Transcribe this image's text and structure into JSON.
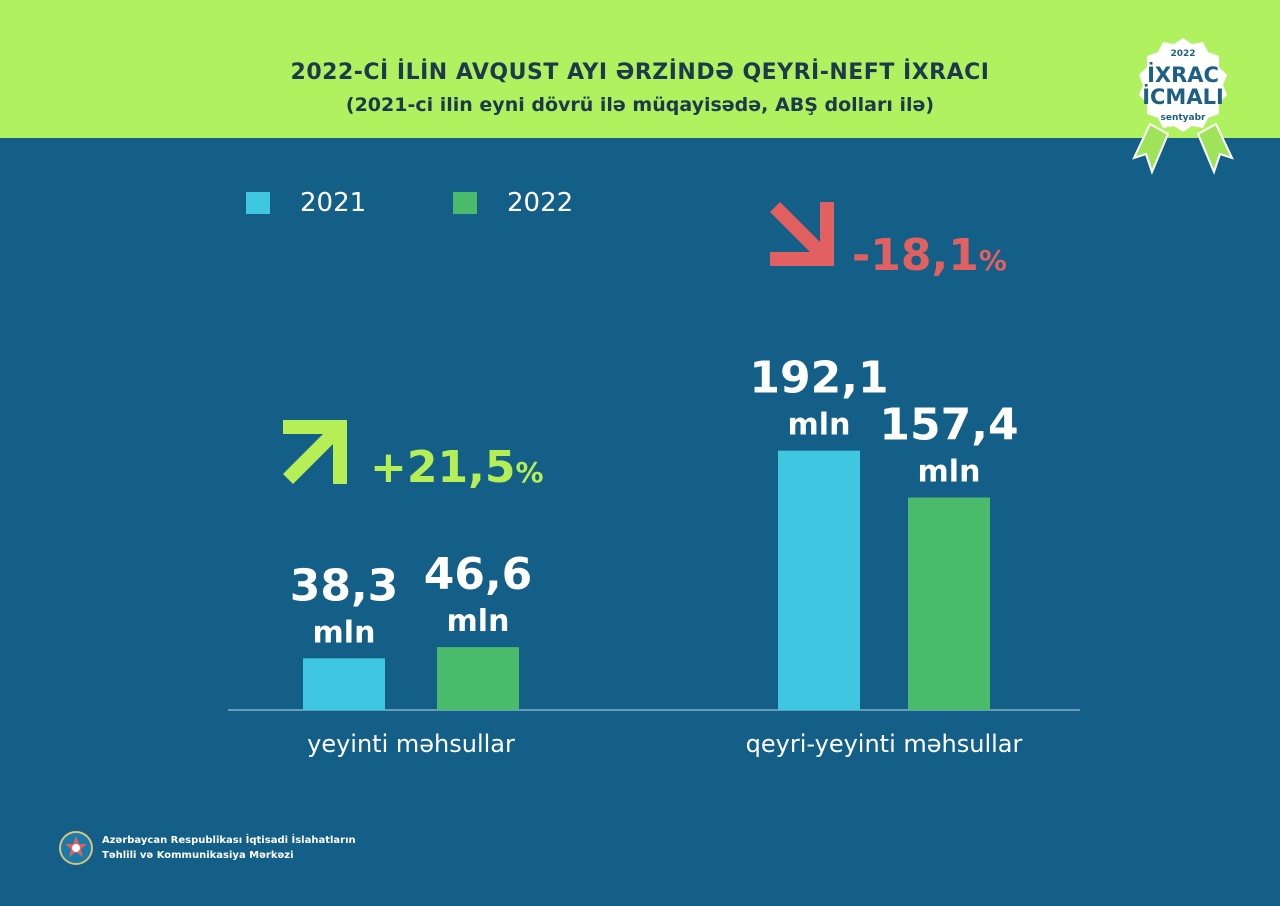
{
  "header": {
    "title": "2022-Cİ İLİN AVQUST AYI ƏRZİNDƏ QEYRİ-NEFT İXRACI",
    "subtitle": "(2021-ci ilin eyni dövrü ilə müqayisədə, ABŞ dolları ilə)"
  },
  "badge": {
    "year": "2022",
    "line1": "İXRAC",
    "line2": "İCMALI",
    "month": "sentyabr"
  },
  "colors": {
    "header_bg": "#b0f15f",
    "page_bg": "#135f87",
    "series_2021": "#3fc6e0",
    "series_2022": "#4aba6b",
    "increase": "#b5ef55",
    "decrease": "#e2605f"
  },
  "chart_data": {
    "type": "bar",
    "categories": [
      "yeyinti məhsullar",
      "qeyri-yeyinti məhsullar"
    ],
    "series": [
      {
        "name": "2021",
        "values": [
          38.3,
          192.1
        ],
        "labels": [
          "38,3",
          "192,1"
        ]
      },
      {
        "name": "2022",
        "values": [
          46.6,
          157.4
        ],
        "labels": [
          "46,6",
          "157,4"
        ]
      }
    ],
    "unit_label": "mln",
    "changes": [
      {
        "category": "yeyinti məhsullar",
        "value": "+21,5",
        "percent": "%",
        "direction": "up"
      },
      {
        "category": "qeyri-yeyinti məhsullar",
        "value": "-18,1",
        "percent": "%",
        "direction": "down"
      }
    ],
    "ylim": [
      0,
      200
    ],
    "legend_placement": "top-left",
    "grid": false
  },
  "footer": {
    "line1": "Azərbaycan Respublikası İqtisadi İslahatların",
    "line2": "Təhlili və Kommunikasiya Mərkəzi"
  }
}
